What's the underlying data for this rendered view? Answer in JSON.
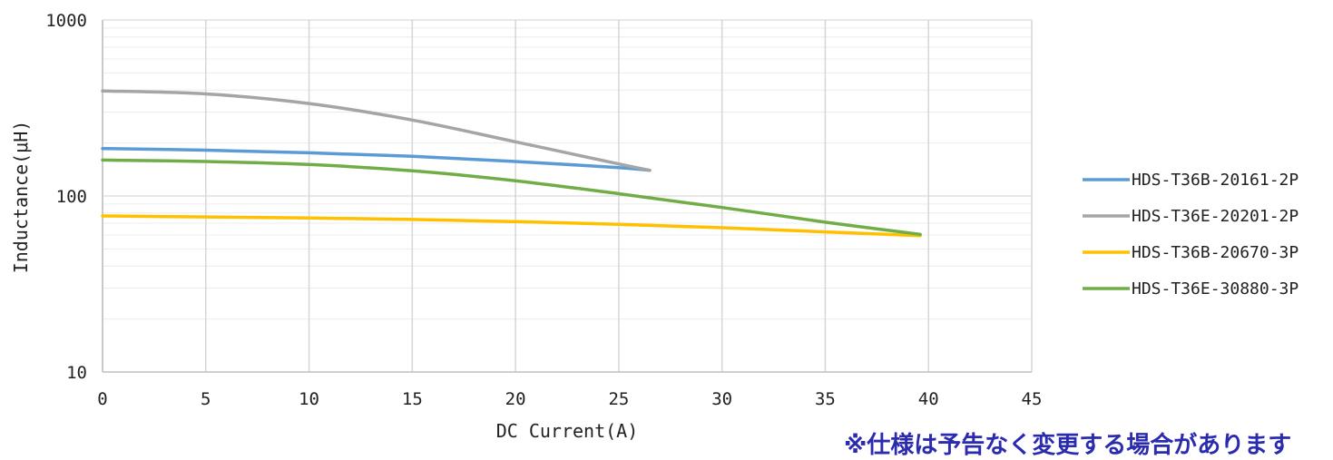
{
  "chart_data": {
    "type": "line",
    "title": "",
    "xlabel": "DC Current(A)",
    "ylabel": "Inductance(μH)",
    "xlim": [
      0,
      45
    ],
    "ylim": [
      10,
      1000
    ],
    "yscale": "log",
    "x_ticks": [
      "0",
      "5",
      "10",
      "15",
      "20",
      "25",
      "30",
      "35",
      "40",
      "45"
    ],
    "y_ticks": [
      "10",
      "100",
      "1000"
    ],
    "grid": true,
    "legend_position": "right",
    "series": [
      {
        "name": "HDS-T36B-20161-2P",
        "color": "#5b9bd5",
        "x": [
          0,
          5,
          10,
          15,
          20,
          25,
          26.5
        ],
        "y": [
          186,
          182,
          176,
          168,
          157,
          145,
          140
        ]
      },
      {
        "name": "HDS-T36E-20201-2P",
        "color": "#a5a5a5",
        "x": [
          0,
          5,
          10,
          15,
          20,
          25,
          26.5
        ],
        "y": [
          395,
          380,
          335,
          270,
          203,
          152,
          140
        ]
      },
      {
        "name": "HDS-T36B-20670-3P",
        "color": "#ffc000",
        "x": [
          0,
          5,
          10,
          15,
          20,
          25,
          30,
          35,
          39.6
        ],
        "y": [
          77,
          76,
          75,
          73.5,
          71.5,
          69,
          66,
          62.5,
          59.5
        ]
      },
      {
        "name": "HDS-T36E-30880-3P",
        "color": "#70ad47",
        "x": [
          0,
          5,
          10,
          15,
          20,
          25,
          30,
          35,
          39.6
        ],
        "y": [
          160,
          157,
          151,
          139,
          122,
          103,
          86,
          71,
          60.5
        ]
      }
    ]
  },
  "note": "※仕様は予告なく変更する場合があります"
}
